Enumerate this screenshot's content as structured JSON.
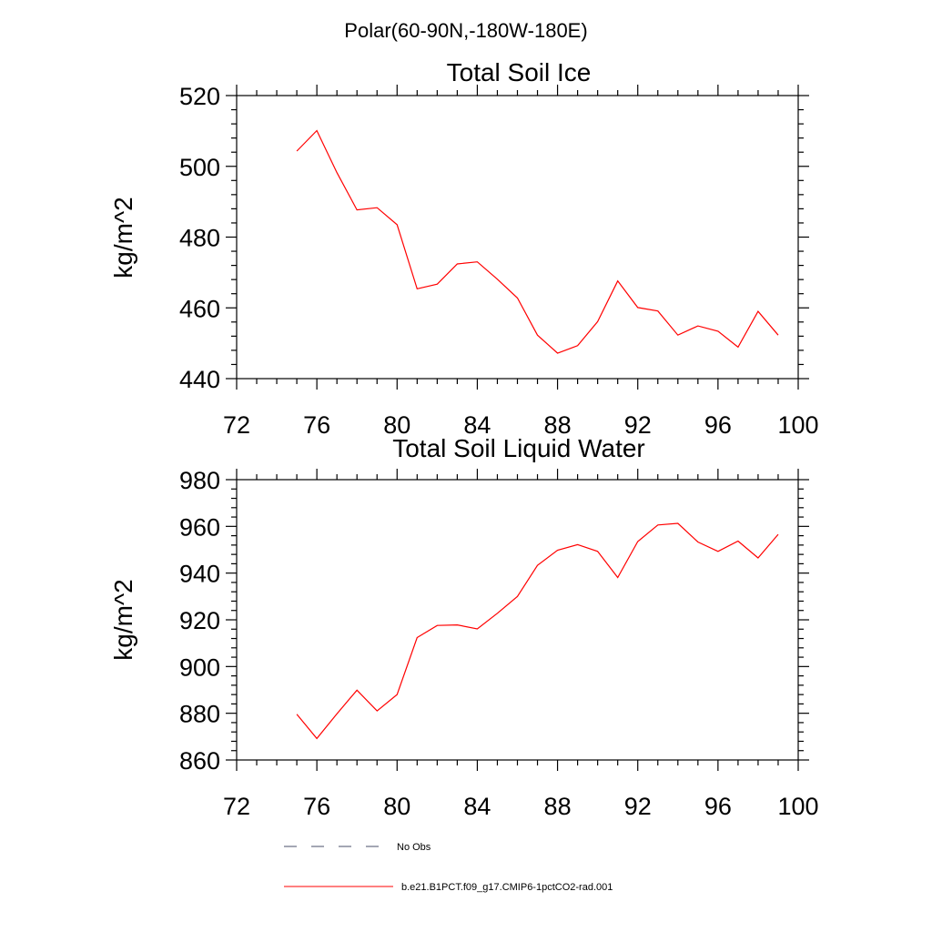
{
  "suptitle": "Polar(60-90N,-180W-180E)",
  "colors": {
    "model": "#ff0000",
    "obs": "#4a4f6a"
  },
  "legend": {
    "obs_label": "No Obs",
    "model_label": "b.e21.B1PCT.f09_g17.CMIP6-1pctCO2-rad.001"
  },
  "chart_data": [
    {
      "type": "line",
      "title": "Total Soil Ice",
      "xlabel": "",
      "ylabel": "kg/m^2",
      "xlim": [
        72,
        100
      ],
      "ylim": [
        440,
        520
      ],
      "xticks": [
        72,
        76,
        80,
        84,
        88,
        92,
        96,
        100
      ],
      "yticks": [
        440,
        460,
        480,
        500,
        520
      ],
      "x": [
        75,
        76,
        77,
        78,
        79,
        80,
        81,
        82,
        83,
        84,
        85,
        86,
        87,
        88,
        89,
        90,
        91,
        92,
        93,
        94,
        95,
        96,
        97,
        98,
        99
      ],
      "series": [
        {
          "values": [
            504.3,
            510.1,
            498.2,
            487.7,
            488.3,
            483.5,
            465.4,
            466.7,
            472.4,
            473.0,
            468.1,
            462.8,
            452.3,
            447.2,
            449.3,
            456.1,
            467.6,
            460.1,
            459.1,
            452.3,
            454.9,
            453.4,
            448.9,
            459.0,
            452.3
          ]
        }
      ]
    },
    {
      "type": "line",
      "title": "Total Soil Liquid Water",
      "xlabel": "",
      "ylabel": "kg/m^2",
      "xlim": [
        72,
        100
      ],
      "ylim": [
        860,
        980
      ],
      "xticks": [
        72,
        76,
        80,
        84,
        88,
        92,
        96,
        100
      ],
      "yticks": [
        860,
        880,
        900,
        920,
        940,
        960,
        980
      ],
      "x": [
        75,
        76,
        77,
        78,
        79,
        80,
        81,
        82,
        83,
        84,
        85,
        86,
        87,
        88,
        89,
        90,
        91,
        92,
        93,
        94,
        95,
        96,
        97,
        98,
        99
      ],
      "series": [
        {
          "values": [
            879.6,
            869.2,
            879.8,
            889.9,
            881.0,
            888.0,
            912.4,
            917.6,
            917.8,
            916.1,
            922.8,
            930.0,
            943.3,
            949.8,
            952.2,
            949.3,
            938.1,
            953.5,
            960.6,
            961.3,
            953.3,
            949.3,
            953.7,
            946.5,
            956.6
          ]
        }
      ]
    }
  ]
}
